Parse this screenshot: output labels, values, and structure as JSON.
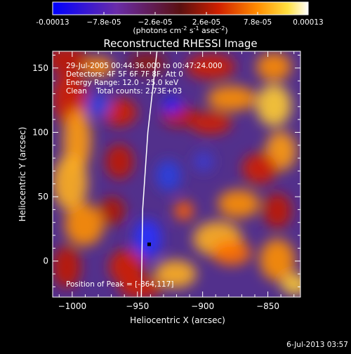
{
  "colorbar": {
    "ticks": [
      "-0.00013",
      "−7.8e-05",
      "−2.6e-05",
      "2.6e-05",
      "7.8e-05",
      "0.00013"
    ],
    "units_prefix": "(photons cm",
    "units_sup1": "-2",
    "units_mid": " s",
    "units_sup2": "-1",
    "units_mid2": " asec",
    "units_sup3": "-2",
    "units_suffix": ")"
  },
  "chart_data": {
    "type": "heatmap",
    "title": "Reconstructed RHESSI Image",
    "xlabel": "Heliocentric X (arcsec)",
    "ylabel": "Heliocentric Y (arcsec)",
    "xlim": [
      -1015,
      -825
    ],
    "ylim": [
      -28,
      163
    ],
    "xticks": [
      -1000,
      -950,
      -900,
      -850
    ],
    "yticks": [
      0,
      50,
      100,
      150
    ],
    "xtick_labels": [
      "−1000",
      "−950",
      "−900",
      "−850"
    ],
    "ytick_labels": [
      "0",
      "50",
      "100",
      "150"
    ],
    "colorscale_range": [
      -0.00013,
      0.00013
    ],
    "colormap": [
      "#0000ff",
      "#6030a0",
      "#7a1a1a",
      "#cc2200",
      "#ff8800",
      "#ffee44",
      "#ffffff"
    ],
    "annotations": [
      "29-Jul-2005 00:44:36.000 to 00:47:24.000",
      "Detectors: 4F 5F 6F 7F 8F, Att 0",
      "Energy Range: 12.0 - 25.0 keV",
      "Clean    Total counts: 2.73E+03"
    ],
    "peak_label": "Position of Peak = [-864,117]",
    "peak": [
      -864,
      117
    ],
    "limb_curve": {
      "x": [
        -935,
        -942,
        -946,
        -947
      ],
      "y": [
        163,
        100,
        40,
        -28
      ]
    }
  },
  "footer": {
    "timestamp": "6-Jul-2013 03:57"
  }
}
